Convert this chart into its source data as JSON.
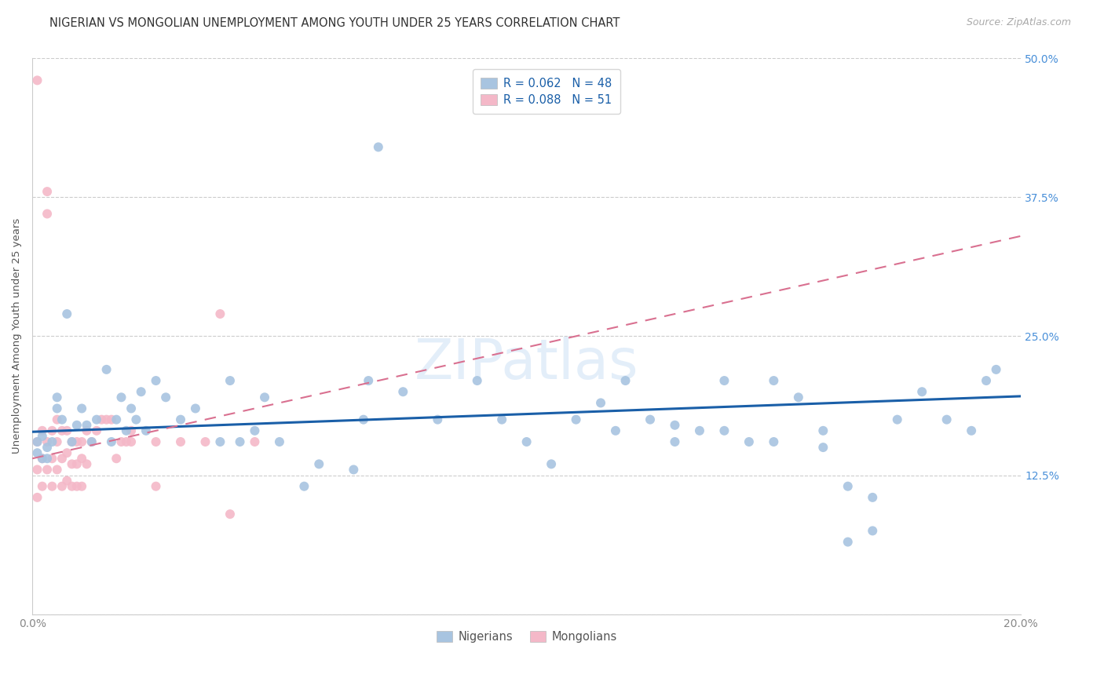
{
  "title": "NIGERIAN VS MONGOLIAN UNEMPLOYMENT AMONG YOUTH UNDER 25 YEARS CORRELATION CHART",
  "source": "Source: ZipAtlas.com",
  "ylabel": "Unemployment Among Youth under 25 years",
  "xlim": [
    0.0,
    0.2
  ],
  "ylim": [
    0.0,
    0.5
  ],
  "ytick_positions": [
    0.0,
    0.125,
    0.25,
    0.375,
    0.5
  ],
  "ytick_labels": [
    "",
    "12.5%",
    "25.0%",
    "37.5%",
    "50.0%"
  ],
  "xtick_positions": [
    0.0,
    0.2
  ],
  "xtick_labels": [
    "0.0%",
    "20.0%"
  ],
  "nigeria_color": "#a8c4e0",
  "mongolia_color": "#f4b8c8",
  "nigeria_line_color": "#1a5fa8",
  "mongolia_line_color": "#d97090",
  "tick_color_right": "#4a90d9",
  "tick_color_bottom": "#888888",
  "title_fontsize": 10.5,
  "source_fontsize": 9,
  "axis_label_fontsize": 9.5,
  "tick_fontsize": 10,
  "legend_fontsize": 10.5,
  "dot_size": 75,
  "watermark_text": "ZIPatlas",
  "nigeria_regression": [
    0.164,
    0.196
  ],
  "mongolia_regression": [
    0.14,
    0.34
  ],
  "nigeria_points_x": [
    0.001,
    0.001,
    0.002,
    0.002,
    0.003,
    0.003,
    0.004,
    0.005,
    0.005,
    0.006,
    0.007,
    0.008,
    0.009,
    0.01,
    0.011,
    0.012,
    0.013,
    0.015,
    0.016,
    0.017,
    0.018,
    0.019,
    0.02,
    0.021,
    0.022,
    0.023,
    0.025,
    0.027,
    0.03,
    0.033,
    0.038,
    0.04,
    0.042,
    0.045,
    0.047,
    0.05,
    0.055,
    0.058,
    0.065,
    0.067,
    0.068,
    0.07,
    0.075,
    0.082,
    0.09,
    0.095,
    0.1,
    0.105
  ],
  "nigeria_points_y": [
    0.155,
    0.145,
    0.14,
    0.16,
    0.15,
    0.14,
    0.155,
    0.185,
    0.195,
    0.175,
    0.27,
    0.155,
    0.17,
    0.185,
    0.17,
    0.155,
    0.175,
    0.22,
    0.155,
    0.175,
    0.195,
    0.165,
    0.185,
    0.175,
    0.2,
    0.165,
    0.21,
    0.195,
    0.175,
    0.185,
    0.155,
    0.21,
    0.155,
    0.165,
    0.195,
    0.155,
    0.115,
    0.135,
    0.13,
    0.175,
    0.21,
    0.42,
    0.2,
    0.175,
    0.21,
    0.175,
    0.155,
    0.135
  ],
  "nigeria_points2_x": [
    0.11,
    0.115,
    0.118,
    0.12,
    0.125,
    0.13,
    0.135,
    0.14,
    0.145,
    0.15,
    0.155,
    0.16,
    0.165,
    0.17,
    0.175,
    0.18,
    0.185,
    0.19,
    0.193,
    0.195,
    0.13,
    0.14,
    0.15,
    0.16,
    0.165,
    0.17
  ],
  "nigeria_points2_y": [
    0.175,
    0.19,
    0.165,
    0.21,
    0.175,
    0.17,
    0.165,
    0.21,
    0.155,
    0.155,
    0.195,
    0.165,
    0.115,
    0.105,
    0.175,
    0.2,
    0.175,
    0.165,
    0.21,
    0.22,
    0.155,
    0.165,
    0.21,
    0.15,
    0.065,
    0.075
  ],
  "mongolia_points_x": [
    0.001,
    0.001,
    0.001,
    0.001,
    0.002,
    0.002,
    0.002,
    0.003,
    0.003,
    0.003,
    0.003,
    0.004,
    0.004,
    0.004,
    0.005,
    0.005,
    0.005,
    0.006,
    0.006,
    0.006,
    0.007,
    0.007,
    0.007,
    0.008,
    0.008,
    0.008,
    0.009,
    0.009,
    0.009,
    0.01,
    0.01,
    0.01,
    0.011,
    0.011,
    0.012,
    0.013,
    0.014,
    0.015,
    0.016,
    0.017,
    0.018,
    0.019,
    0.02,
    0.02,
    0.025,
    0.025,
    0.03,
    0.035,
    0.038,
    0.04,
    0.045
  ],
  "mongolia_points_y": [
    0.48,
    0.155,
    0.13,
    0.105,
    0.165,
    0.14,
    0.115,
    0.38,
    0.36,
    0.155,
    0.13,
    0.165,
    0.14,
    0.115,
    0.175,
    0.155,
    0.13,
    0.165,
    0.14,
    0.115,
    0.165,
    0.145,
    0.12,
    0.155,
    0.135,
    0.115,
    0.155,
    0.135,
    0.115,
    0.155,
    0.14,
    0.115,
    0.165,
    0.135,
    0.155,
    0.165,
    0.175,
    0.175,
    0.175,
    0.14,
    0.155,
    0.155,
    0.165,
    0.155,
    0.155,
    0.115,
    0.155,
    0.155,
    0.27,
    0.09,
    0.155
  ]
}
